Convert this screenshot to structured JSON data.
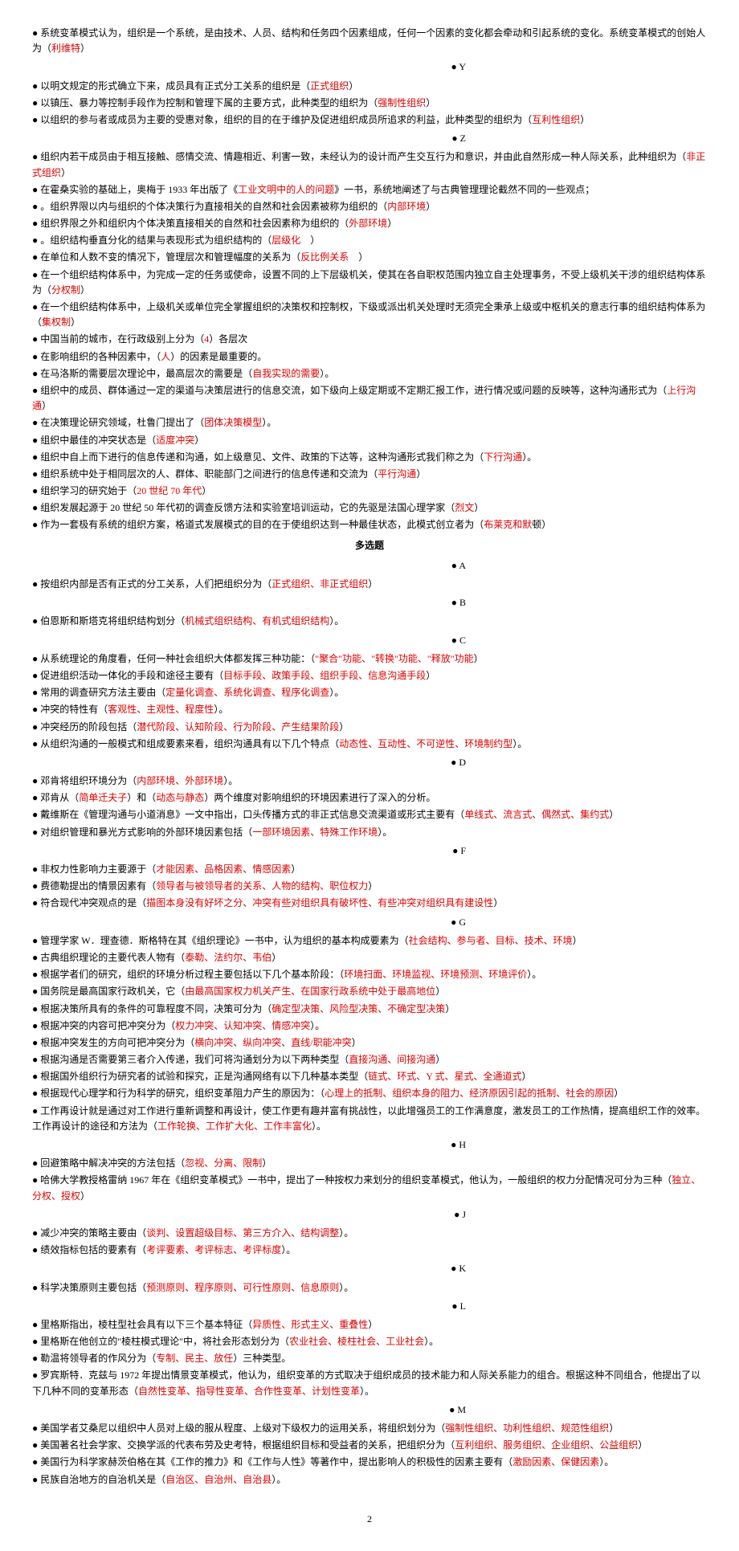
{
  "lines": [
    {
      "type": "bullet",
      "segs": [
        {
          "t": "系统变革模式认为，组织是一个系统，是由技术、人员、结构和任务四个因素组成，任何一个因素的变化都会牵动和引起系统的变化。系统变革模式的创始人为（"
        },
        {
          "t": "利维特",
          "r": 1
        },
        {
          "t": "）"
        }
      ]
    },
    {
      "type": "letter",
      "segs": [
        {
          "t": "● Y"
        }
      ]
    },
    {
      "type": "bullet",
      "segs": [
        {
          "t": "以明文规定的形式确立下来，成员具有正式分工关系的组织是（"
        },
        {
          "t": "正式组织",
          "r": 1
        },
        {
          "t": "）"
        }
      ]
    },
    {
      "type": "bullet",
      "segs": [
        {
          "t": "以镇压、暴力等控制手段作为控制和管理下属的主要方式，此种类型的组织为（"
        },
        {
          "t": "强制性组织",
          "r": 1
        },
        {
          "t": "）"
        }
      ]
    },
    {
      "type": "bullet",
      "segs": [
        {
          "t": "以组织的参与者或成员为主要的受惠对象，组织的目的在于维护及促进组织成员所追求的利益，此种类型的组织为（"
        },
        {
          "t": "互利性组织",
          "r": 1
        },
        {
          "t": "）"
        }
      ]
    },
    {
      "type": "letter",
      "segs": [
        {
          "t": "● Z"
        }
      ]
    },
    {
      "type": "bullet",
      "segs": [
        {
          "t": "组织内若干成员由于相互接触、感情交流、情趣相近、利害一致，未经认为的设计而产生交互行为和意识，并由此自然形成一种人际关系，此种组织为（"
        },
        {
          "t": "非正式组织",
          "r": 1
        },
        {
          "t": "）"
        }
      ]
    },
    {
      "type": "bullet",
      "segs": [
        {
          "t": "在霍桑实验的基础上，奥梅于 1933 年出版了《"
        },
        {
          "t": "工业文明中的人的问题",
          "r": 1
        },
        {
          "t": "》一书，系统地阐述了与古典管理理论截然不同的一些观点；"
        }
      ]
    },
    {
      "type": "bullet",
      "segs": [
        {
          "t": "。组织界限以内与组织的个体决策行为直接相关的自然和社会因素被称为组织的（"
        },
        {
          "t": "内部环境",
          "r": 1
        },
        {
          "t": "）"
        }
      ]
    },
    {
      "type": "bullet",
      "segs": [
        {
          "t": "组织界限之外和组织内个体决策直接相关的自然和社会因素称为组织的（"
        },
        {
          "t": "外部环境",
          "r": 1
        },
        {
          "t": "）"
        }
      ]
    },
    {
      "type": "bullet",
      "segs": [
        {
          "t": "。组织结构垂直分化的结果与表现形式为组织结构的（"
        },
        {
          "t": "层级化",
          "r": 1
        },
        {
          "t": "　）"
        }
      ]
    },
    {
      "type": "bullet",
      "segs": [
        {
          "t": "在单位和人数不变的情况下，管理层次和管理幅度的关系为（"
        },
        {
          "t": "反比例关系",
          "r": 1
        },
        {
          "t": "　）"
        }
      ]
    },
    {
      "type": "bullet",
      "segs": [
        {
          "t": "在一个组织结构体系中，为完成一定的任务或使命，设置不同的上下层级机关，使其在各自职权范围内独立自主处理事务，不受上级机关干涉的组织结构体系为（"
        },
        {
          "t": "分权制",
          "r": 1
        },
        {
          "t": "）"
        }
      ]
    },
    {
      "type": "bullet",
      "segs": [
        {
          "t": "在一个组织结构体系中，上级机关或单位完全掌握组织的决策权和控制权，下级或派出机关处理时无须完全秉承上级或中枢机关的意志行事的组织结构体系为（"
        },
        {
          "t": "集权制",
          "r": 1
        },
        {
          "t": "）"
        }
      ]
    },
    {
      "type": "bullet",
      "segs": [
        {
          "t": "中国当前的城市，在行政级别上分为（"
        },
        {
          "t": "4",
          "r": 1
        },
        {
          "t": "）各层次"
        }
      ]
    },
    {
      "type": "bullet",
      "segs": [
        {
          "t": "在影响组织的各种因素中，（"
        },
        {
          "t": "人",
          "r": 1
        },
        {
          "t": "）的因素是最重要的。"
        }
      ]
    },
    {
      "type": "bullet",
      "segs": [
        {
          "t": "在马洛斯的需要层次理论中，最高层次的需要是（"
        },
        {
          "t": "自我实现的需要",
          "r": 1
        },
        {
          "t": "）。"
        }
      ]
    },
    {
      "type": "bullet",
      "segs": [
        {
          "t": "组织中的成员、群体通过一定的渠道与决策层进行的信息交流，如下级向上级定期或不定期汇报工作，进行情况或问题的反映等，这种沟通形式为（"
        },
        {
          "t": "上行沟通",
          "r": 1
        },
        {
          "t": "）"
        }
      ]
    },
    {
      "type": "bullet",
      "segs": [
        {
          "t": "在决策理论研究领域，杜鲁门提出了（"
        },
        {
          "t": "团体决策模型",
          "r": 1
        },
        {
          "t": "）。"
        }
      ]
    },
    {
      "type": "bullet",
      "segs": [
        {
          "t": "组织中最佳的冲突状态是（"
        },
        {
          "t": "适度冲突",
          "r": 1
        },
        {
          "t": "）"
        }
      ]
    },
    {
      "type": "bullet",
      "segs": [
        {
          "t": "组织中自上而下进行的信息传递和沟通，如上级意见、文件、政策的下达等，这种沟通形式我们称之为（"
        },
        {
          "t": "下行沟通",
          "r": 1
        },
        {
          "t": "）。"
        }
      ]
    },
    {
      "type": "bullet",
      "segs": [
        {
          "t": "组织系统中处于相同层次的人、群体、职能部门之间进行的信息传递和交流为（"
        },
        {
          "t": "平行沟通",
          "r": 1
        },
        {
          "t": "）"
        }
      ]
    },
    {
      "type": "bullet",
      "segs": [
        {
          "t": "组织学习的研究始于（"
        },
        {
          "t": "20 世纪 70 年代",
          "r": 1
        },
        {
          "t": "）"
        }
      ]
    },
    {
      "type": "bullet",
      "segs": [
        {
          "t": "组织发展起源于 20 世纪 50 年代初的调查反馈方法和实验室培训运动，它的先驱是法国心理学家（"
        },
        {
          "t": "烈文",
          "r": 1
        },
        {
          "t": "）"
        }
      ]
    },
    {
      "type": "bullet",
      "segs": [
        {
          "t": "作为一套极有系统的组织方案，格道式发展模式的目的在于使组织达到一种最佳状态，此模式创立者为（"
        },
        {
          "t": "布莱克和默",
          "r": 1
        },
        {
          "t": "顿）"
        }
      ]
    },
    {
      "type": "title",
      "segs": [
        {
          "t": "多选题"
        }
      ]
    },
    {
      "type": "letter",
      "segs": [
        {
          "t": "● A"
        }
      ]
    },
    {
      "type": "bullet",
      "segs": [
        {
          "t": "按组织内部是否有正式的分工关系，人们把组织分为（"
        },
        {
          "t": "正式组织、非正式组织",
          "r": 1
        },
        {
          "t": "）"
        }
      ]
    },
    {
      "type": "letter",
      "segs": [
        {
          "t": "● B"
        }
      ]
    },
    {
      "type": "bullet",
      "segs": [
        {
          "t": "伯恩斯和斯塔克将组织结构划分（"
        },
        {
          "t": "机械式组织结构、有机式组织结构",
          "r": 1
        },
        {
          "t": "）。"
        }
      ]
    },
    {
      "type": "letter",
      "segs": [
        {
          "t": "● C"
        }
      ]
    },
    {
      "type": "bullet",
      "segs": [
        {
          "t": "从系统理论的角度看，任何一种社会组织大体都发挥三种功能：（"
        },
        {
          "t": "\"聚合\"功能、\"转换\"功能、\"释放\"功能",
          "r": 1
        },
        {
          "t": "）"
        }
      ]
    },
    {
      "type": "bullet",
      "segs": [
        {
          "t": "促进组织活动一体化的手段和途径主要有（"
        },
        {
          "t": "目标手段、政策手段、组织手段、信息沟通手段",
          "r": 1
        },
        {
          "t": "）"
        }
      ]
    },
    {
      "type": "bullet",
      "segs": [
        {
          "t": "常用的调查研究方法主要由（"
        },
        {
          "t": "定量化调查、系统化调查、程序化调查",
          "r": 1
        },
        {
          "t": "）。"
        }
      ]
    },
    {
      "type": "bullet",
      "segs": [
        {
          "t": "冲突的特性有（"
        },
        {
          "t": "客观性、主观性、程度性",
          "r": 1
        },
        {
          "t": "）。"
        }
      ]
    },
    {
      "type": "bullet",
      "segs": [
        {
          "t": "冲突经历的阶段包括（"
        },
        {
          "t": "潜代阶段、认知阶段、行为阶段、产生结果阶段",
          "r": 1
        },
        {
          "t": "）"
        }
      ]
    },
    {
      "type": "bullet",
      "segs": [
        {
          "t": "从组织沟通的一般模式和组成要素来看，组织沟通具有以下几个特点（"
        },
        {
          "t": "动态性、互动性、不可逆性、环境制约型",
          "r": 1
        },
        {
          "t": "）。"
        }
      ]
    },
    {
      "type": "letter",
      "segs": [
        {
          "t": "● D"
        }
      ]
    },
    {
      "type": "bullet",
      "segs": [
        {
          "t": "邓肯将组织环境分为（"
        },
        {
          "t": "内部环境、外部环境",
          "r": 1
        },
        {
          "t": "）。"
        }
      ]
    },
    {
      "type": "bullet",
      "segs": [
        {
          "t": "邓肯从（"
        },
        {
          "t": "简单迁夫子",
          "r": 1
        },
        {
          "t": "）和（"
        },
        {
          "t": "动态与静态",
          "r": 1
        },
        {
          "t": "）两个维度对影响组织的环境因素进行了深入的分析。"
        }
      ]
    },
    {
      "type": "bullet",
      "segs": [
        {
          "t": "戴维斯在《管理沟通与小道消息》一文中指出，口头传播方式的非正式信息交流渠道或形式主要有（"
        },
        {
          "t": "单线式、流言式、偶然式、集约式",
          "r": 1
        },
        {
          "t": "）"
        }
      ]
    },
    {
      "type": "bullet",
      "segs": [
        {
          "t": "对组织管理和暴光方式影响的外部环境因素包括（"
        },
        {
          "t": "一部环境因素、特殊工作环境",
          "r": 1
        },
        {
          "t": "）。"
        }
      ]
    },
    {
      "type": "letter",
      "segs": [
        {
          "t": "● F"
        }
      ]
    },
    {
      "type": "bullet",
      "segs": [
        {
          "t": "非权力性影响力主要源于（"
        },
        {
          "t": "才能因素、品格因素、情感因素",
          "r": 1
        },
        {
          "t": "）"
        }
      ]
    },
    {
      "type": "bullet",
      "segs": [
        {
          "t": "费德勒提出的情景因素有（"
        },
        {
          "t": "领导者与被领导者的关系、人物的结构、职位权力",
          "r": 1
        },
        {
          "t": "）"
        }
      ]
    },
    {
      "type": "bullet",
      "segs": [
        {
          "t": "符合现代冲突观点的是（"
        },
        {
          "t": "描图本身没有好坏之分、冲突有些对组织具有破坏性、有些冲突对组织具有建设性",
          "r": 1
        },
        {
          "t": "）"
        }
      ]
    },
    {
      "type": "letter",
      "segs": [
        {
          "t": "● G"
        }
      ]
    },
    {
      "type": "bullet",
      "segs": [
        {
          "t": "管理学家 W．理查德．斯格特在其《组织理论》一书中，认为组织的基本构成要素为（"
        },
        {
          "t": "社会结构、参与者、目标、技术、环境",
          "r": 1
        },
        {
          "t": "）"
        }
      ]
    },
    {
      "type": "bullet",
      "segs": [
        {
          "t": "古典组织理论的主要代表人物有（"
        },
        {
          "t": "泰勒、法约尔、韦伯",
          "r": 1
        },
        {
          "t": "）"
        }
      ]
    },
    {
      "type": "bullet",
      "segs": [
        {
          "t": "根据学者们的研究，组织的环境分析过程主要包括以下几个基本阶段：（"
        },
        {
          "t": "环境扫面、环境监视、环境预测、环境评价",
          "r": 1
        },
        {
          "t": "）。"
        }
      ]
    },
    {
      "type": "bullet",
      "segs": [
        {
          "t": "国务院是最高国家行政机关，它（"
        },
        {
          "t": "由最高国家权力机关产生、在国家行政系统中处于最高地位",
          "r": 1
        },
        {
          "t": "）"
        }
      ]
    },
    {
      "type": "bullet",
      "segs": [
        {
          "t": "根据决策所具有的条件的可靠程度不同，决策可分为（"
        },
        {
          "t": "确定型决策、风险型决策、不确定型决策",
          "r": 1
        },
        {
          "t": "）"
        }
      ]
    },
    {
      "type": "bullet",
      "segs": [
        {
          "t": "根据冲突的内容可把冲突分为（"
        },
        {
          "t": "权力冲突、认知冲突、情感冲突",
          "r": 1
        },
        {
          "t": "）。"
        }
      ]
    },
    {
      "type": "bullet",
      "segs": [
        {
          "t": "根据冲突发生的方向可把冲突分为（"
        },
        {
          "t": "横向冲突、纵向冲突、直线/职能冲突",
          "r": 1
        },
        {
          "t": "）"
        }
      ]
    },
    {
      "type": "bullet",
      "segs": [
        {
          "t": "根据沟通是否需要第三者介入传递，我们可将沟通划分为以下两种类型（"
        },
        {
          "t": "直接沟通、间接沟通",
          "r": 1
        },
        {
          "t": "）"
        }
      ]
    },
    {
      "type": "bullet",
      "segs": [
        {
          "t": "根据国外组织行为研究者的试验和探究，正是沟通网络有以下几种基本类型（"
        },
        {
          "t": "链式、环式、Y 式、星式、全通道式",
          "r": 1
        },
        {
          "t": "）"
        }
      ]
    },
    {
      "type": "bullet",
      "segs": [
        {
          "t": "根据现代心理学和行为科学的研究，组织变革阻力产生的原因为：（"
        },
        {
          "t": "心理上的抵制、组织本身的阻力、经济原因引起的抵制、社会的原因",
          "r": 1
        },
        {
          "t": "）"
        }
      ]
    },
    {
      "type": "bullet",
      "segs": [
        {
          "t": "工作再设计就是通过对工作进行重新调整和再设计，使工作更有趣并富有挑战性，以此增强员工的工作满意度，激发员工的工作热情，提高组织工作的效率。工作再设计的途径和方法为（"
        },
        {
          "t": "工作轮换、工作扩大化、工作丰富化",
          "r": 1
        },
        {
          "t": "）。"
        }
      ]
    },
    {
      "type": "letter",
      "segs": [
        {
          "t": "● H"
        }
      ]
    },
    {
      "type": "bullet",
      "segs": [
        {
          "t": "回避策略中解决冲突的方法包括（"
        },
        {
          "t": "忽视、分离、限制",
          "r": 1
        },
        {
          "t": "）"
        }
      ]
    },
    {
      "type": "bullet",
      "segs": [
        {
          "t": "哈佛大学教授格雷纳 1967 年在《组织变革模式》一书中，提出了一种按权力来划分的组织变革模式，他认为，一般组织的权力分配情况可分为三种（"
        },
        {
          "t": "独立、分权、授权",
          "r": 1
        },
        {
          "t": "）"
        }
      ]
    },
    {
      "type": "letter",
      "segs": [
        {
          "t": "● J"
        }
      ]
    },
    {
      "type": "bullet",
      "segs": [
        {
          "t": "减少冲突的策略主要由（"
        },
        {
          "t": "谈判、设置超级目标、第三方介入、结构调整",
          "r": 1
        },
        {
          "t": "）。"
        }
      ]
    },
    {
      "type": "bullet",
      "segs": [
        {
          "t": "绩效指标包括的要素有（"
        },
        {
          "t": "考评要素、考评标志、考评标度",
          "r": 1
        },
        {
          "t": "）。"
        }
      ]
    },
    {
      "type": "letter",
      "segs": [
        {
          "t": "● K"
        }
      ]
    },
    {
      "type": "bullet",
      "segs": [
        {
          "t": "科学决策原则主要包括（"
        },
        {
          "t": "预测原则、程序原则、可行性原则、信息原则",
          "r": 1
        },
        {
          "t": "）。"
        }
      ]
    },
    {
      "type": "letter",
      "segs": [
        {
          "t": "● L"
        }
      ]
    },
    {
      "type": "bullet",
      "segs": [
        {
          "t": "里格斯指出，棱柱型社会具有以下三个基本特征（"
        },
        {
          "t": "异质性、形式主义、重叠性",
          "r": 1
        },
        {
          "t": "）"
        }
      ]
    },
    {
      "type": "bullet",
      "segs": [
        {
          "t": "里格斯在他创立的\"棱柱模式理论\"中，将社会形态划分为（"
        },
        {
          "t": "农业社会、棱柱社会、工业社会",
          "r": 1
        },
        {
          "t": "）。"
        }
      ]
    },
    {
      "type": "bullet",
      "segs": [
        {
          "t": "勒温将领导者的作风分为（"
        },
        {
          "t": "专制、民主、放任",
          "r": 1
        },
        {
          "t": "）三种类型。"
        }
      ]
    },
    {
      "type": "bullet",
      "segs": [
        {
          "t": "罗宾斯特．克兹与 1972 年提出情景变革模式，他认为，组织变革的方式取决于组织成员的技术能力和人际关系能力的组合。根据这种不同组合，他提出了以下几种不同的变革形态（"
        },
        {
          "t": "自然性变革、指导性变革、合作性变革、计划性变革",
          "r": 1
        },
        {
          "t": "）。"
        }
      ]
    },
    {
      "type": "letter",
      "segs": [
        {
          "t": "● M"
        }
      ]
    },
    {
      "type": "bullet",
      "segs": [
        {
          "t": "美国学者艾桑尼以组织中人员对上级的服从程度、上级对下级权力的运用关系，将组织划分为（"
        },
        {
          "t": "强制性组织、功利性组织、规范性组织",
          "r": 1
        },
        {
          "t": "）"
        }
      ]
    },
    {
      "type": "bullet",
      "segs": [
        {
          "t": "美国著名社会学家、交换学派的代表布劳及史考特，根据组织目标和受益者的关系，把组织分为（"
        },
        {
          "t": "互利组织、服务组织、企业组织、公益组织",
          "r": 1
        },
        {
          "t": "）"
        }
      ]
    },
    {
      "type": "bullet",
      "segs": [
        {
          "t": "美国行为科学家赫茨伯格在其《工作的推力》和《工作与人性》等著作中，提出影响人的积极性的因素主要有（"
        },
        {
          "t": "激励因素、保健因素",
          "r": 1
        },
        {
          "t": "）。"
        }
      ]
    },
    {
      "type": "bullet",
      "segs": [
        {
          "t": "民族自治地方的自治机关是（"
        },
        {
          "t": "自治区、自治州、自治县",
          "r": 1
        },
        {
          "t": "）。"
        }
      ]
    }
  ],
  "page_number": "2"
}
